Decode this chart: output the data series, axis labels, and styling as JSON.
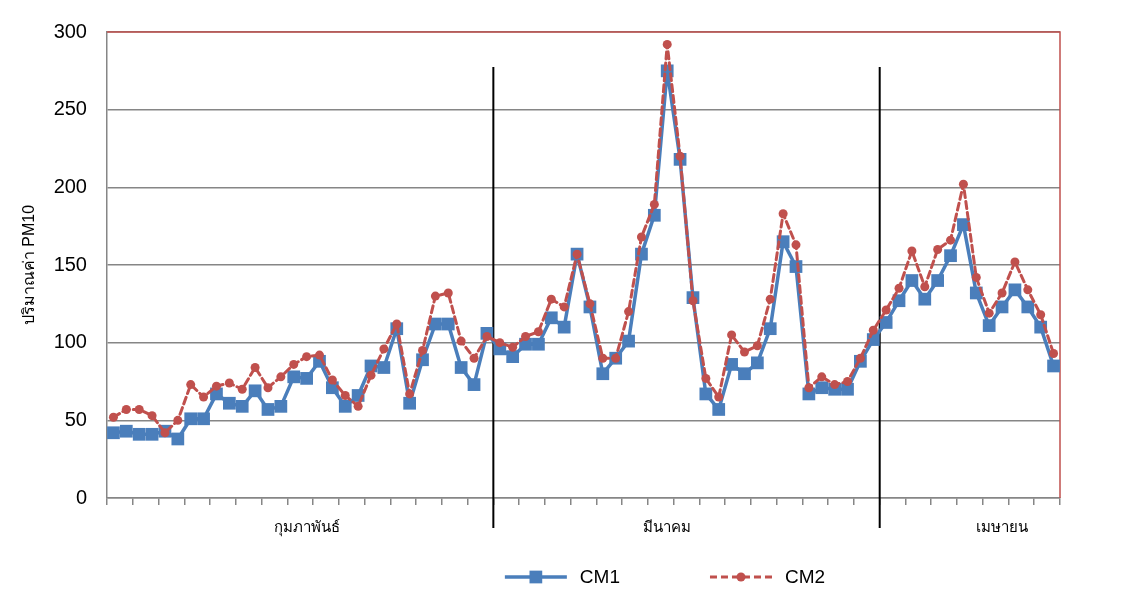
{
  "chart_data": {
    "type": "line",
    "ylabel": "ปริมาณค่า PM10",
    "categories": [
      null,
      null,
      null,
      null,
      null,
      null,
      null,
      null,
      null,
      null,
      null,
      null,
      null,
      null,
      null,
      "กุมภาพันธ์",
      null,
      null,
      null,
      null,
      null,
      null,
      null,
      null,
      null,
      null,
      null,
      null,
      null,
      null,
      null,
      null,
      null,
      null,
      null,
      null,
      null,
      null,
      null,
      null,
      null,
      null,
      null,
      "มีนาคม",
      null,
      null,
      null,
      null,
      null,
      null,
      null,
      null,
      null,
      null,
      null,
      null,
      null,
      null,
      null,
      null,
      null,
      null,
      null,
      null,
      null,
      null,
      null,
      null,
      null,
      "เมษายน",
      null,
      null,
      null,
      null
    ],
    "series": [
      {
        "name": "CM1",
        "color": "#4a7ebb",
        "marker": "square",
        "line_style": "solid",
        "values": [
          42,
          43,
          41,
          41,
          43,
          38,
          51,
          51,
          67,
          61,
          59,
          69,
          57,
          59,
          78,
          77,
          88,
          71,
          59,
          66,
          85,
          84,
          109,
          61,
          89,
          112,
          112,
          84,
          73,
          106,
          96,
          91,
          99,
          99,
          116,
          110,
          157,
          123,
          80,
          90,
          101,
          157,
          182,
          275,
          218,
          129,
          67,
          57,
          86,
          80,
          87,
          109,
          165,
          149,
          67,
          71,
          70,
          70,
          88,
          102,
          113,
          127,
          140,
          128,
          140,
          156,
          176,
          132,
          111,
          123,
          134,
          123,
          110,
          85
        ]
      },
      {
        "name": "CM2",
        "color": "#c0504d",
        "marker": "circle",
        "line_style": "dashed",
        "values": [
          52,
          57,
          57,
          53,
          42,
          50,
          73,
          65,
          72,
          74,
          70,
          84,
          71,
          78,
          86,
          91,
          92,
          76,
          66,
          59,
          79,
          96,
          112,
          67,
          95,
          130,
          132,
          101,
          90,
          104,
          100,
          97,
          104,
          107,
          128,
          123,
          157,
          125,
          90,
          90,
          120,
          168,
          189,
          292,
          220,
          127,
          77,
          65,
          105,
          94,
          98,
          128,
          183,
          163,
          71,
          78,
          73,
          75,
          90,
          108,
          121,
          135,
          159,
          136,
          160,
          166,
          202,
          142,
          119,
          132,
          152,
          134,
          118,
          93
        ]
      }
    ],
    "ylim": [
      0,
      300
    ],
    "yticks": [
      0,
      50,
      100,
      150,
      200,
      250,
      300
    ],
    "grid": "y",
    "legend": "bottom"
  }
}
